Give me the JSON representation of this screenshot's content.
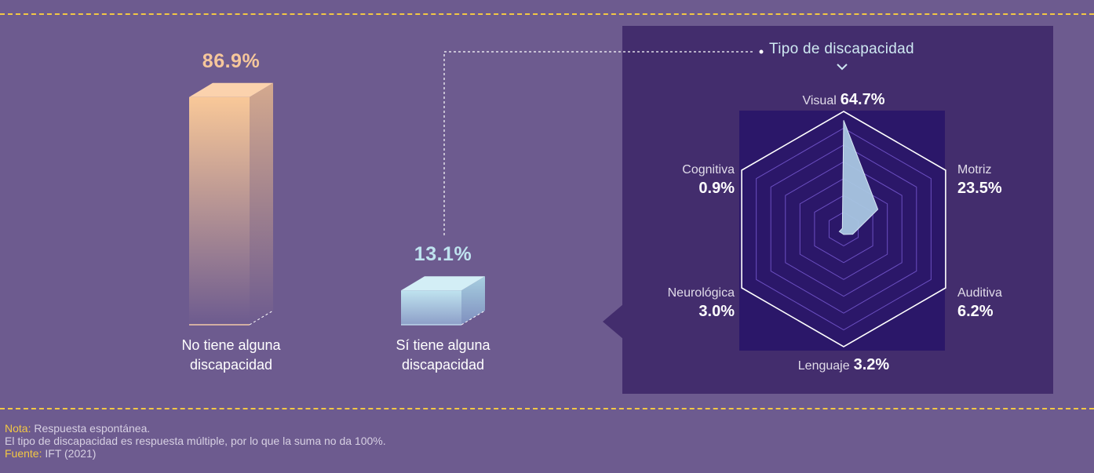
{
  "chart_data": [
    {
      "type": "bar",
      "categories": [
        "No tiene alguna discapacidad",
        "Sí tiene alguna discapacidad"
      ],
      "values": [
        86.9,
        13.1
      ],
      "value_labels": [
        "86.9%",
        "13.1%"
      ],
      "category_lines": [
        [
          "No tiene alguna",
          "discapacidad"
        ],
        [
          "Sí tiene alguna",
          "discapacidad"
        ]
      ],
      "colors": [
        "#f6c79b",
        "#bfe3ef"
      ],
      "ylim": [
        0,
        100
      ]
    },
    {
      "type": "radar",
      "title": "Tipo de discapacidad",
      "axes": [
        "Visual",
        "Motriz",
        "Auditiva",
        "Lenguaje",
        "Neurológica",
        "Cognitiva"
      ],
      "values": [
        64.7,
        23.5,
        6.2,
        3.2,
        3.0,
        0.9
      ],
      "value_labels": [
        "64.7%",
        "23.5%",
        "6.2%",
        "3.2%",
        "3.0%",
        "0.9%"
      ],
      "rmax": 70,
      "rings": 7,
      "fill_color": "#a9c6e2"
    }
  ],
  "notes": {
    "nota_label": "Nota:",
    "nota_text": " Respuesta espontánea.",
    "line2": "El tipo de discapacidad es respuesta múltiple, por lo que la suma no da 100%.",
    "fuente_label": "Fuente:",
    "fuente_text": " IFT (2021)"
  }
}
